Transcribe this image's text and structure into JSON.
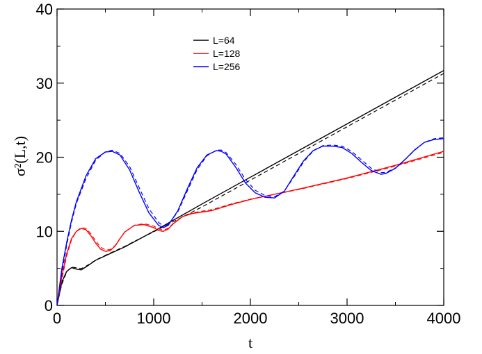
{
  "chart_data": {
    "type": "line",
    "xlabel": "t",
    "ylabel": "σ²(L,t)",
    "xlim": [
      0,
      4000
    ],
    "ylim": [
      0,
      40
    ],
    "x_ticks": [
      "0",
      "1000",
      "2000",
      "3000",
      "4000"
    ],
    "y_ticks": [
      "0",
      "10",
      "20",
      "30",
      "40"
    ],
    "legend_position": "top-center",
    "grid": false,
    "series": [
      {
        "name": "L=64",
        "color": "#000000",
        "x": [
          0,
          50,
          100,
          150,
          200,
          250,
          300,
          400,
          500,
          600,
          700,
          800,
          1000,
          1500,
          2000,
          2500,
          3000,
          3500,
          4000
        ],
        "y": [
          0,
          3.2,
          4.6,
          5.1,
          4.9,
          4.8,
          5.2,
          6.1,
          6.7,
          7.3,
          7.9,
          8.6,
          10.0,
          13.7,
          17.3,
          20.9,
          24.5,
          28.1,
          31.7
        ]
      },
      {
        "name": "L=128",
        "color": "#ff0000",
        "x": [
          0,
          50,
          100,
          150,
          200,
          250,
          300,
          350,
          400,
          450,
          500,
          550,
          600,
          650,
          700,
          800,
          900,
          1000,
          1050,
          1100,
          1150,
          1200,
          1300,
          1400,
          1500,
          1600,
          1700,
          1800,
          2000,
          2500,
          3000,
          3500,
          4000
        ],
        "y": [
          0,
          4.0,
          7.0,
          9.0,
          10.0,
          10.4,
          10.2,
          9.4,
          8.4,
          7.6,
          7.3,
          7.4,
          8.0,
          9.0,
          9.9,
          10.8,
          10.9,
          10.5,
          10.1,
          10.0,
          10.3,
          11.0,
          12.0,
          12.4,
          12.6,
          12.8,
          13.2,
          13.6,
          14.3,
          15.7,
          17.2,
          18.9,
          20.8
        ]
      },
      {
        "name": "L=256",
        "color": "#0000ff",
        "x": [
          0,
          50,
          100,
          150,
          200,
          300,
          400,
          500,
          570,
          650,
          750,
          850,
          950,
          1050,
          1100,
          1150,
          1250,
          1350,
          1450,
          1550,
          1650,
          1700,
          1750,
          1850,
          1950,
          2050,
          2150,
          2250,
          2350,
          2450,
          2550,
          2650,
          2750,
          2850,
          2950,
          3050,
          3150,
          3250,
          3350,
          3400,
          3500,
          3600,
          3700,
          3800,
          3900,
          4000
        ],
        "y": [
          0,
          5.0,
          8.5,
          11.5,
          14.0,
          17.5,
          19.8,
          20.7,
          20.8,
          20.3,
          18.3,
          15.3,
          12.5,
          10.8,
          10.5,
          10.8,
          12.8,
          15.8,
          18.6,
          20.3,
          20.9,
          20.8,
          20.4,
          18.6,
          16.5,
          15.2,
          14.6,
          14.5,
          15.4,
          17.5,
          19.5,
          20.9,
          21.5,
          21.5,
          21.3,
          20.5,
          19.3,
          18.2,
          17.7,
          17.8,
          18.5,
          19.7,
          21.0,
          22.0,
          22.4,
          22.5
        ]
      }
    ]
  }
}
